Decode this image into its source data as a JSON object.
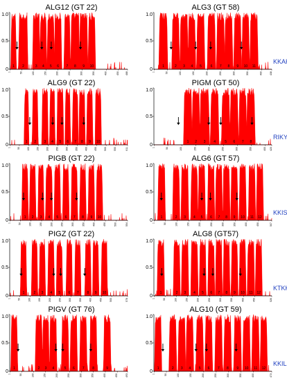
{
  "chart_data": [
    {
      "type": "area",
      "title": "ALG12 (GT 22)",
      "yticks": [
        "0",
        "0.5",
        "1.0"
      ],
      "ylim": [
        0,
        1
      ],
      "xlim": [
        0,
        488
      ],
      "xtick_labels": [
        "1",
        "50",
        "100",
        "150",
        "200",
        "250",
        "300",
        "350",
        "400",
        "450",
        "488"
      ],
      "segments": [
        [
          8,
          24
        ],
        [
          40,
          72
        ],
        [
          98,
          122
        ],
        [
          128,
          150
        ],
        [
          158,
          182
        ],
        [
          188,
          212
        ],
        [
          228,
          248
        ],
        [
          256,
          286
        ],
        [
          292,
          320
        ],
        [
          328,
          352
        ]
      ],
      "tm_labels": [
        "1",
        "2",
        "3",
        "4",
        "5",
        "6",
        "7",
        "8",
        "9",
        "10"
      ],
      "arrows_x": [
        30,
        133,
        172,
        293
      ],
      "motif": ""
    },
    {
      "type": "area",
      "title": "ALG3 (GT 58)",
      "yticks": [
        "0",
        "0.5",
        "1.0"
      ],
      "ylim": [
        0,
        1
      ],
      "xlim": [
        0,
        438
      ],
      "xtick_labels": [
        "1",
        "50",
        "100",
        "150",
        "200",
        "250",
        "300",
        "350",
        "400",
        "438"
      ],
      "segments": [
        [
          22,
          48
        ],
        [
          70,
          92
        ],
        [
          100,
          124
        ],
        [
          130,
          152
        ],
        [
          162,
          186
        ],
        [
          202,
          226
        ],
        [
          236,
          260
        ],
        [
          266,
          290
        ],
        [
          300,
          322
        ],
        [
          330,
          352
        ],
        [
          360,
          384
        ]
      ],
      "tm_labels": [
        "1",
        "2",
        "3",
        "4",
        "5",
        "6",
        "7",
        "8",
        "9",
        "10",
        "11"
      ],
      "arrows_x": [
        64,
        155,
        211,
        325
      ],
      "motif": "KKAH"
    },
    {
      "type": "area",
      "title": "ALG9 (GT 22)",
      "yticks": [
        "0",
        "0.5",
        "1.0"
      ],
      "ylim": [
        0,
        1
      ],
      "xlim": [
        0,
        611
      ],
      "xtick_labels": [
        "1",
        "50",
        "100",
        "150",
        "200",
        "250",
        "300",
        "350",
        "400",
        "450",
        "500",
        "550",
        "611"
      ],
      "segments": [
        [
          78,
          96
        ],
        [
          120,
          144
        ],
        [
          170,
          196
        ],
        [
          210,
          232
        ],
        [
          248,
          276
        ],
        [
          290,
          312
        ],
        [
          328,
          352
        ],
        [
          362,
          388
        ],
        [
          402,
          428
        ],
        [
          446,
          472
        ]
      ],
      "tm_labels": [
        "1",
        "2",
        "3",
        "4",
        "5",
        "6",
        "7",
        "8",
        "9",
        "10"
      ],
      "arrows_x": [
        104,
        223,
        271,
        384
      ],
      "motif": ""
    },
    {
      "type": "area",
      "title": "PIGM (GT 50)",
      "yticks": [
        "0",
        "0.5",
        "1.0"
      ],
      "ylim": [
        0,
        1
      ],
      "xlim": [
        0,
        423
      ],
      "xtick_labels": [
        "1",
        "50",
        "100",
        "150",
        "200",
        "250",
        "300",
        "350",
        "400",
        "423"
      ],
      "segments": [
        [
          110,
          134
        ],
        [
          140,
          162
        ],
        [
          168,
          196
        ],
        [
          206,
          230
        ],
        [
          246,
          270
        ],
        [
          276,
          300
        ],
        [
          308,
          330
        ],
        [
          336,
          360
        ]
      ],
      "tm_labels": [
        "1",
        "2",
        "3",
        "4",
        "5",
        "6",
        "7",
        "8"
      ],
      "arrows_x": [
        88,
        197,
        240,
        352
      ],
      "motif": "RIKYD"
    },
    {
      "type": "area",
      "title": "PIGB (GT 22)",
      "yticks": [
        "0",
        "0.5",
        "1.0"
      ],
      "ylim": [
        0,
        1
      ],
      "xlim": [
        0,
        554
      ],
      "xtick_labels": [
        "1",
        "50",
        "100",
        "150",
        "200",
        "250",
        "300",
        "350",
        "400",
        "450",
        "500",
        "554"
      ],
      "segments": [
        [
          60,
          84
        ],
        [
          96,
          120
        ],
        [
          136,
          158
        ],
        [
          172,
          198
        ],
        [
          212,
          236
        ],
        [
          252,
          276
        ],
        [
          292,
          316
        ],
        [
          332,
          356
        ],
        [
          372,
          396
        ],
        [
          410,
          434
        ]
      ],
      "tm_labels": [
        "1",
        "2",
        "3",
        "4",
        "5",
        "6",
        "7",
        "8",
        "9",
        "10"
      ],
      "arrows_x": [
        65,
        154,
        196,
        314
      ],
      "motif": ""
    },
    {
      "type": "area",
      "title": "ALG6 (GT 57)",
      "yticks": [
        "0",
        "0.5",
        "1.0"
      ],
      "ylim": [
        0,
        1
      ],
      "xlim": [
        0,
        507
      ],
      "xtick_labels": [
        "1",
        "50",
        "100",
        "150",
        "200",
        "250",
        "300",
        "350",
        "400",
        "450",
        "507"
      ],
      "segments": [
        [
          20,
          46
        ],
        [
          84,
          108
        ],
        [
          120,
          146
        ],
        [
          162,
          186
        ],
        [
          194,
          218
        ],
        [
          234,
          258
        ],
        [
          268,
          292
        ],
        [
          300,
          324
        ],
        [
          334,
          358
        ],
        [
          370,
          394
        ],
        [
          410,
          434
        ],
        [
          444,
          468
        ]
      ],
      "tm_labels": [
        "1",
        "2",
        "3",
        "4",
        "5",
        "6",
        "7",
        "8",
        "9",
        "10",
        "11",
        "12"
      ],
      "arrows_x": [
        32,
        206,
        243,
        357
      ],
      "motif": "KKIS"
    },
    {
      "type": "area",
      "title": "PIGZ  (GT 22)",
      "yticks": [
        "0",
        "0.5",
        "1.0"
      ],
      "ylim": [
        0,
        1
      ],
      "xlim": [
        0,
        578
      ],
      "xtick_labels": [
        "1",
        "50",
        "100",
        "150",
        "200",
        "250",
        "300",
        "350",
        "400",
        "450",
        "500",
        "578"
      ],
      "segments": [
        [
          56,
          80
        ],
        [
          110,
          134
        ],
        [
          148,
          172
        ],
        [
          190,
          216
        ],
        [
          232,
          256
        ],
        [
          280,
          304
        ],
        [
          322,
          346
        ],
        [
          372,
          396
        ],
        [
          410,
          434
        ],
        [
          452,
          476
        ]
      ],
      "tm_labels": [
        "1",
        "2",
        "3",
        "4",
        "5",
        "6",
        "7",
        "8",
        "9",
        "10"
      ],
      "arrows_x": [
        56,
        216,
        250,
        368
      ],
      "motif": ""
    },
    {
      "type": "area",
      "title": "ALG8 (GT57)",
      "yticks": [
        "0",
        "0.5",
        "1.0"
      ],
      "ylim": [
        0,
        1
      ],
      "xlim": [
        0,
        526
      ],
      "xtick_labels": [
        "1",
        "50",
        "100",
        "150",
        "200",
        "250",
        "300",
        "350",
        "400",
        "450",
        "526"
      ],
      "segments": [
        [
          18,
          44
        ],
        [
          90,
          114
        ],
        [
          126,
          152
        ],
        [
          168,
          194
        ],
        [
          206,
          230
        ],
        [
          244,
          268
        ],
        [
          278,
          302
        ],
        [
          312,
          336
        ],
        [
          348,
          372
        ],
        [
          384,
          408
        ],
        [
          420,
          446
        ],
        [
          456,
          480
        ]
      ],
      "tm_labels": [
        "1",
        "2",
        "3",
        "4",
        "5",
        "6",
        "7",
        "8",
        "9",
        "10",
        "11",
        "12"
      ],
      "arrows_x": [
        35,
        224,
        263,
        386
      ],
      "motif": "KTKKQ"
    },
    {
      "type": "area",
      "title": "PIGV (GT 76)",
      "yticks": [
        "0",
        "0.5",
        "1.0"
      ],
      "ylim": [
        0,
        1
      ],
      "xlim": [
        0,
        493
      ],
      "xtick_labels": [
        "1",
        "50",
        "100",
        "150",
        "200",
        "250",
        "300",
        "350",
        "400",
        "450",
        "493"
      ],
      "segments": [
        [
          8,
          30
        ],
        [
          110,
          134
        ],
        [
          140,
          162
        ],
        [
          170,
          194
        ],
        [
          220,
          244
        ],
        [
          256,
          280
        ],
        [
          296,
          320
        ],
        [
          338,
          362
        ],
        [
          396,
          420
        ]
      ],
      "tm_labels": [
        "1",
        "2",
        "3",
        "4",
        "5",
        "6",
        "7",
        "8",
        "9"
      ],
      "arrows_x": [
        35,
        193,
        222,
        339
      ],
      "motif": ""
    },
    {
      "type": "area",
      "title": "ALG10 (GT 59)",
      "yticks": [
        "0",
        "0.5",
        "1.0"
      ],
      "ylim": [
        0,
        1
      ],
      "xlim": [
        0,
        473
      ],
      "xtick_labels": [
        "1",
        "50",
        "100",
        "150",
        "200",
        "250",
        "300",
        "350",
        "400",
        "473"
      ],
      "segments": [
        [
          6,
          28
        ],
        [
          64,
          88
        ],
        [
          100,
          124
        ],
        [
          132,
          156
        ],
        [
          172,
          196
        ],
        [
          208,
          232
        ],
        [
          248,
          272
        ],
        [
          284,
          308
        ],
        [
          324,
          348
        ],
        [
          360,
          384
        ],
        [
          396,
          420
        ],
        [
          430,
          452
        ]
      ],
      "tm_labels": [
        "1",
        "2",
        "3",
        "4",
        "5",
        "6",
        "7",
        "8",
        "9",
        "10",
        "11",
        "12"
      ],
      "arrows_x": [
        36,
        169,
        211,
        330
      ],
      "motif": "KKIL"
    }
  ]
}
